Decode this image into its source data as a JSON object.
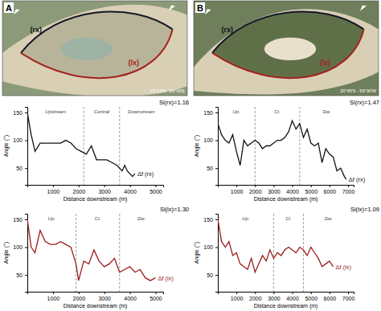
{
  "panels": [
    {
      "label": "A",
      "coords": "24°13'N - 89°43'E",
      "outlines": [
        "(rx)",
        "(lx)"
      ]
    },
    {
      "label": "B",
      "coords": "20°45'S - 59°30'W",
      "outlines": [
        "(rx)",
        "(lx)"
      ]
    }
  ],
  "chart_data": [
    {
      "type": "line",
      "x_label": "Distance downstream (m)",
      "y_label": "Angle (°)",
      "xlim": [
        0,
        5300
      ],
      "xticks": [
        1000,
        2000,
        3000,
        4000,
        5000
      ],
      "ylim": [
        20,
        160
      ],
      "yticks": [
        50,
        100,
        150
      ],
      "annotations": [
        {
          "text": "Si(rx)=1.16"
        }
      ],
      "sections": {
        "bounds": [
          2200,
          3600
        ],
        "labels": [
          "Upstream",
          "Central",
          "Downstream"
        ]
      },
      "x": [
        0,
        150,
        300,
        500,
        700,
        1000,
        1300,
        1500,
        1700,
        1900,
        2100,
        2300,
        2500,
        2700,
        2900,
        3100,
        3300,
        3500,
        3700,
        3800,
        3900,
        4100,
        4200
      ],
      "series": [
        {
          "name": "Δf (rx)",
          "color": "#111111",
          "line_style": "solid",
          "values": [
            150,
            110,
            80,
            95,
            95,
            95,
            95,
            100,
            95,
            85,
            80,
            75,
            90,
            65,
            65,
            65,
            60,
            55,
            45,
            55,
            45,
            35,
            40
          ]
        }
      ]
    },
    {
      "type": "line",
      "x_label": "Distance downstream (m)",
      "y_label": "Angle (°)",
      "xlim": [
        0,
        5300
      ],
      "xticks": [
        1000,
        2000,
        3000,
        4000,
        5000
      ],
      "ylim": [
        20,
        160
      ],
      "yticks": [
        50,
        100,
        150
      ],
      "annotations": [
        {
          "text": "Si(lx)=1.30"
        }
      ],
      "sections": {
        "bounds": [
          1900,
          3600
        ],
        "labels": [
          "Up.",
          "Ct.",
          "Dw."
        ]
      },
      "x": [
        0,
        150,
        300,
        500,
        700,
        900,
        1100,
        1300,
        1500,
        1700,
        1900,
        2000,
        2200,
        2400,
        2600,
        2800,
        3000,
        3200,
        3400,
        3600,
        3800,
        4000,
        4200,
        4400,
        4600,
        4800,
        5000
      ],
      "series": [
        {
          "name": "Δf (lx)",
          "color": "#9b1c1c",
          "line_style": "solid",
          "values": [
            150,
            100,
            90,
            130,
            110,
            105,
            105,
            110,
            105,
            100,
            70,
            40,
            75,
            70,
            95,
            75,
            65,
            70,
            80,
            55,
            60,
            65,
            55,
            60,
            45,
            40,
            45
          ]
        }
      ]
    },
    {
      "type": "line",
      "x_label": "Distance downstream (m)",
      "y_label": "Angle (°)",
      "xlim": [
        0,
        7300
      ],
      "xticks": [
        1000,
        2000,
        3000,
        4000,
        5000,
        6000,
        7000
      ],
      "ylim": [
        20,
        160
      ],
      "yticks": [
        50,
        100,
        150
      ],
      "annotations": [
        {
          "text": "Si(rx)=1.47"
        }
      ],
      "sections": {
        "bounds": [
          2000,
          4400
        ],
        "labels": [
          "Up.",
          "Ct.",
          "Dw."
        ]
      },
      "x": [
        0,
        200,
        400,
        600,
        800,
        1000,
        1200,
        1400,
        1600,
        1800,
        2000,
        2200,
        2400,
        2600,
        2800,
        3000,
        3200,
        3400,
        3600,
        3800,
        4000,
        4200,
        4400,
        4600,
        4800,
        5000,
        5200,
        5400,
        5600,
        5800,
        6000,
        6200,
        6400,
        6600,
        6800,
        6900
      ],
      "series": [
        {
          "name": "Δf (rx)",
          "color": "#111111",
          "line_style": "solid",
          "values": [
            130,
            110,
            100,
            95,
            110,
            80,
            55,
            100,
            90,
            95,
            100,
            95,
            85,
            90,
            90,
            95,
            100,
            100,
            105,
            115,
            135,
            120,
            130,
            105,
            120,
            95,
            90,
            95,
            60,
            85,
            75,
            70,
            45,
            50,
            35,
            30
          ]
        }
      ]
    },
    {
      "type": "line",
      "x_label": "Distance downstream (m)",
      "y_label": "Angle (°)",
      "xlim": [
        0,
        7300
      ],
      "xticks": [
        1000,
        2000,
        3000,
        4000,
        5000,
        6000,
        7000
      ],
      "ylim": [
        20,
        160
      ],
      "yticks": [
        50,
        100,
        150
      ],
      "annotations": [
        {
          "text": "Si(lx)=1.09"
        }
      ],
      "sections": {
        "bounds": [
          3000,
          4600
        ],
        "labels": [
          "Up.",
          "Ct.",
          "Dw."
        ]
      },
      "x": [
        0,
        200,
        400,
        600,
        800,
        1000,
        1200,
        1400,
        1600,
        1800,
        2000,
        2200,
        2400,
        2600,
        2800,
        3000,
        3200,
        3400,
        3600,
        3800,
        4000,
        4200,
        4400,
        4600,
        4800,
        5000,
        5200,
        5400,
        5600,
        5800,
        6000,
        6200
      ],
      "series": [
        {
          "name": "Δf (lx)",
          "color": "#9b1c1c",
          "line_style": "solid",
          "values": [
            150,
            110,
            100,
            110,
            85,
            90,
            70,
            65,
            60,
            80,
            55,
            70,
            85,
            75,
            95,
            80,
            90,
            85,
            95,
            100,
            95,
            90,
            100,
            95,
            85,
            100,
            90,
            80,
            65,
            70,
            75,
            65
          ]
        }
      ]
    }
  ]
}
